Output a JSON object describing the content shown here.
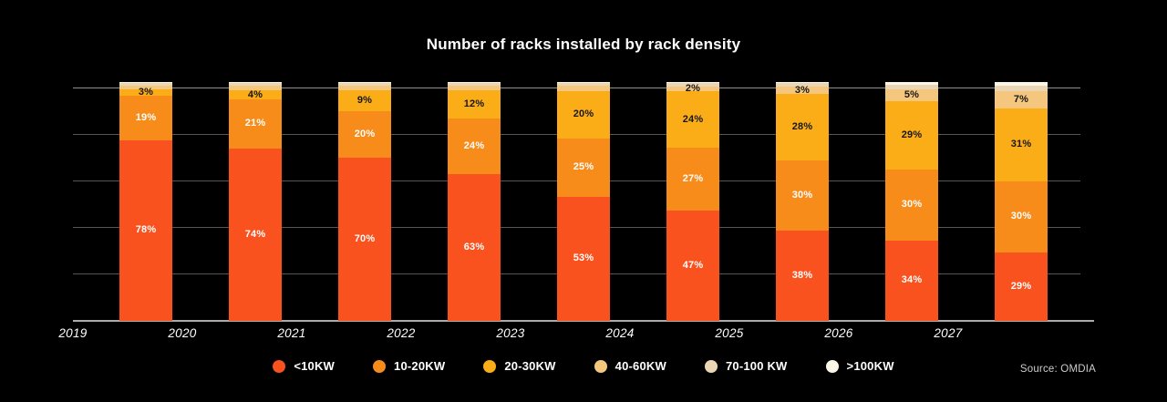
{
  "title": "Number of racks installed by rack density",
  "source": "Source: OMDIA",
  "colors": {
    "background": "#000000",
    "title_text": "#ffffff",
    "gridline": "#565656",
    "top_gridline": "#8f8f8f",
    "axis_line": "#ababab",
    "year_label_text": "#ffffff",
    "source_text": "#cccccc"
  },
  "legend": {
    "items": [
      {
        "label": "<10KW",
        "color": "#F9521E",
        "icon": "legend-dot-icon"
      },
      {
        "label": "10-20KW",
        "color": "#F78C1B",
        "icon": "legend-dot-icon"
      },
      {
        "label": "20-30KW",
        "color": "#FBAD18",
        "icon": "legend-dot-icon"
      },
      {
        "label": "40-60KW",
        "color": "#F5C67E",
        "icon": "legend-dot-icon"
      },
      {
        "label": "70-100 KW",
        "color": "#EAD6B5",
        "icon": "legend-dot-icon"
      },
      {
        "label": ">100KW",
        "color": "#FBF7E8",
        "icon": "legend-dot-icon"
      }
    ]
  },
  "chart_data": {
    "type": "bar",
    "stacked": true,
    "percent_stack": true,
    "title": "Number of racks installed by rack density",
    "xlabel": "",
    "ylabel": "",
    "ylim": [
      0,
      100
    ],
    "y_gridlines_pct": [
      0,
      20,
      40,
      60,
      80,
      100
    ],
    "y_tick_labels_shown": false,
    "legend_position": "bottom",
    "categories": [
      "2019",
      "2020",
      "2021",
      "2022",
      "2023",
      "2024",
      "2025",
      "2026",
      "2027"
    ],
    "series": [
      {
        "name": "<10KW",
        "color": "#F9521E",
        "label_color": "#ffffff",
        "values": [
          78,
          74,
          70,
          63,
          53,
          47,
          38,
          34,
          29
        ],
        "labels": [
          "78%",
          "74%",
          "70%",
          "63%",
          "53%",
          "47%",
          "38%",
          "34%",
          "29%"
        ]
      },
      {
        "name": "10-20KW",
        "color": "#F78C1B",
        "label_color": "#ffffff",
        "values": [
          19,
          21,
          20,
          24,
          25,
          27,
          30,
          30,
          30
        ],
        "labels": [
          "19%",
          "21%",
          "20%",
          "24%",
          "25%",
          "27%",
          "30%",
          "30%",
          "30%"
        ]
      },
      {
        "name": "20-30KW",
        "color": "#FBAD18",
        "label_color": "#161616",
        "values": [
          3,
          4,
          9,
          12,
          20,
          24,
          28,
          29,
          31
        ],
        "labels": [
          "3%",
          "4%",
          "9%",
          "12%",
          "20%",
          "24%",
          "28%",
          "29%",
          "31%"
        ]
      },
      {
        "name": "40-60KW",
        "color": "#F5C67E",
        "label_color": "#161616",
        "values": [
          1.5,
          2,
          2,
          2,
          2.5,
          2,
          3,
          5,
          7
        ],
        "labels": [
          "",
          "",
          "",
          "",
          "",
          "2%",
          "3%",
          "5%",
          "7%"
        ]
      },
      {
        "name": "70-100 KW",
        "color": "#EAD6B5",
        "label_color": "#161616",
        "values": [
          1,
          1,
          1,
          1,
          1,
          1.5,
          1.5,
          2,
          2.5
        ],
        "labels": [
          "",
          "",
          "",
          "",
          "",
          "",
          "",
          "",
          ""
        ]
      },
      {
        "name": ">100KW",
        "color": "#FBF7E8",
        "label_color": "#161616",
        "values": [
          0.5,
          0.5,
          0.5,
          0.5,
          0.5,
          0.5,
          0.5,
          1,
          1.5
        ],
        "labels": [
          "",
          "",
          "",
          "",
          "",
          "",
          "",
          "",
          ""
        ]
      }
    ]
  }
}
